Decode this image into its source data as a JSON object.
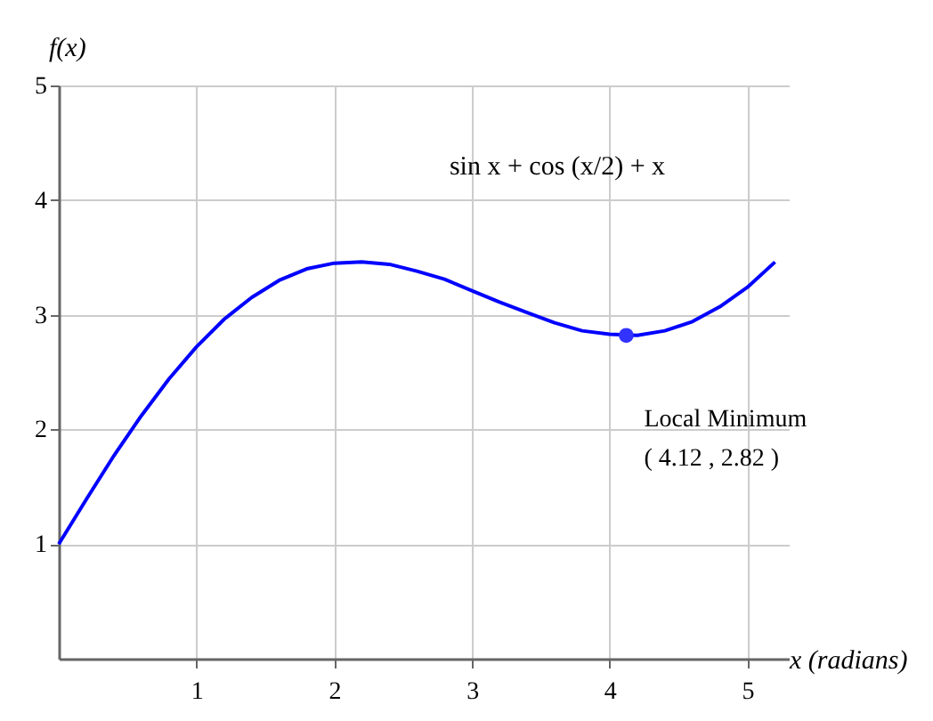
{
  "chart_data": {
    "type": "line",
    "xlabel": "x (radians)",
    "ylabel": "f(x)",
    "annotations": [
      "sin x + cos (x/2) + x",
      {
        "text": "Local Minimum\n( 4.12 , 2.82 )",
        "x": 4.12,
        "y": 2.82
      }
    ],
    "xlim": [
      0,
      5.3
    ],
    "ylim": [
      0,
      5
    ],
    "xticks": [
      1,
      2,
      3,
      4,
      5
    ],
    "yticks": [
      1,
      2,
      3,
      4,
      5
    ],
    "grid": true,
    "line_style": "solid",
    "series": [
      {
        "color": "#0000ff",
        "x": [
          0,
          0.2,
          0.4,
          0.6,
          0.8,
          1.0,
          1.2,
          1.4,
          1.6,
          1.8,
          2.0,
          2.2,
          2.4,
          2.6,
          2.8,
          3.0,
          3.2,
          3.4,
          3.6,
          3.8,
          4.0,
          4.2,
          4.4,
          4.6,
          4.8,
          5.0,
          5.2
        ],
        "values": [
          1,
          1.39,
          1.77,
          2.12,
          2.44,
          2.72,
          2.96,
          3.15,
          3.3,
          3.4,
          3.45,
          3.46,
          3.44,
          3.38,
          3.31,
          3.21,
          3.11,
          3.02,
          2.93,
          2.86,
          2.83,
          2.82,
          2.86,
          2.94,
          3.07,
          3.24,
          3.46
        ]
      },
      {
        "type": "scatter",
        "color": "#3333ff",
        "marker": "circle",
        "x": [
          4.12
        ],
        "values": [
          2.82
        ]
      }
    ]
  }
}
